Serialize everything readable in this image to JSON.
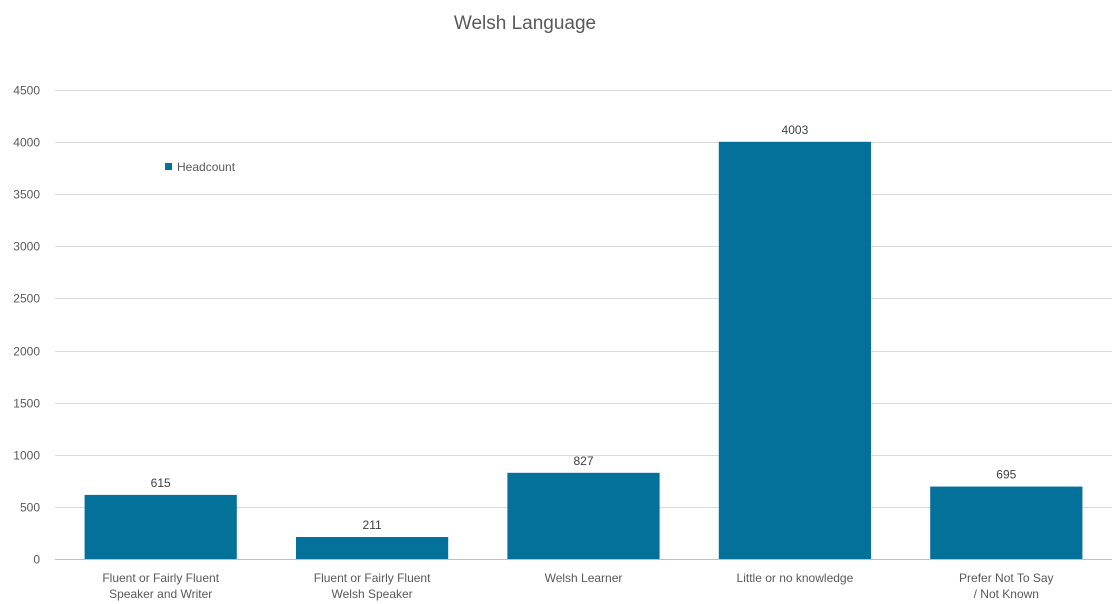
{
  "chart_data": {
    "type": "bar",
    "title": "Welsh Language",
    "categories": [
      [
        "Fluent or Fairly Fluent",
        "Speaker and Writer"
      ],
      [
        "Fluent or Fairly Fluent",
        "Welsh Speaker"
      ],
      [
        "Welsh Learner"
      ],
      [
        "Little or no knowledge"
      ],
      [
        "Prefer Not To Say",
        "/ Not Known"
      ]
    ],
    "series": [
      {
        "name": "Headcount",
        "values": [
          615,
          211,
          827,
          4003,
          695
        ],
        "color": "#03719a"
      }
    ],
    "ylim": [
      0,
      4500
    ],
    "yticks": [
      0,
      500,
      1000,
      1500,
      2000,
      2500,
      3000,
      3500,
      4000,
      4500
    ],
    "xlabel": "",
    "ylabel": "",
    "grid": true,
    "legend_position": "top-left",
    "data_labels": true
  }
}
